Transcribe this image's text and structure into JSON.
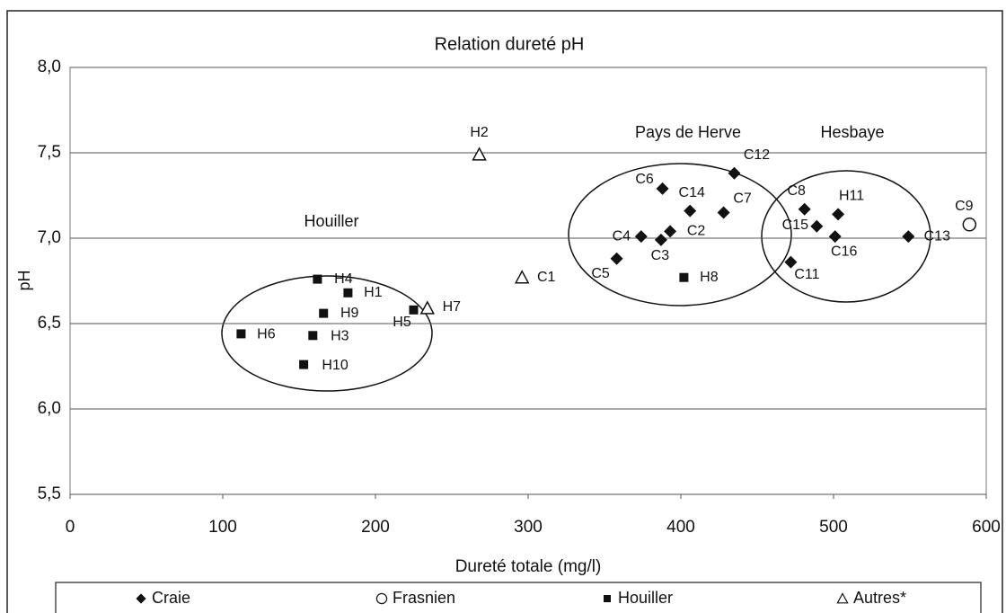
{
  "chart_data": {
    "type": "scatter",
    "title": "Relation dureté pH",
    "x_label": "Dureté totale (mg/l)",
    "y_label": "pH",
    "xlim": [
      0,
      600
    ],
    "ylim": [
      5.5,
      8
    ],
    "xticks": [
      0,
      100,
      200,
      300,
      400,
      500,
      600
    ],
    "yticks": [
      {
        "value": 5.5,
        "label": "5,5"
      },
      {
        "value": 6,
        "label": "6,0"
      },
      {
        "value": 6.5,
        "label": "6,5"
      },
      {
        "value": 7,
        "label": "7,0"
      },
      {
        "value": 7.5,
        "label": "7,5"
      },
      {
        "value": 8,
        "label": "8,0"
      }
    ],
    "grid": true,
    "legend": "bottom",
    "annotations": [
      "Houiller",
      "Pays de Herve",
      "Hesbaye"
    ],
    "series": [
      {
        "name": "Craie",
        "marker": "diamond",
        "color": "#111111",
        "labels": [
          "C12",
          "C6",
          "C14",
          "C7",
          "C2",
          "C4",
          "C3",
          "C5",
          "C8",
          "C15",
          "H11",
          "C16",
          "C13",
          "C11"
        ],
        "x": [
          435,
          388,
          406,
          428,
          393,
          374,
          387,
          358,
          481,
          489,
          503,
          501,
          549,
          472
        ],
        "values": [
          7.38,
          7.29,
          7.16,
          7.15,
          7.04,
          7.01,
          6.99,
          6.88,
          7.17,
          7.07,
          7.14,
          7.01,
          7.01,
          6.86
        ]
      },
      {
        "name": "Frasnien",
        "marker": "circle",
        "color": "#111111",
        "labels": [
          "C9"
        ],
        "x": [
          589
        ],
        "values": [
          7.08
        ]
      },
      {
        "name": "Houiller",
        "marker": "square",
        "color": "#111111",
        "labels": [
          "H4",
          "H1",
          "H9",
          "H5",
          "H6",
          "H3",
          "H10",
          "H8"
        ],
        "x": [
          162,
          182,
          166,
          225,
          112,
          159,
          153,
          402
        ],
        "values": [
          6.76,
          6.68,
          6.56,
          6.58,
          6.44,
          6.43,
          6.26,
          6.77
        ]
      },
      {
        "name": "Autres*",
        "marker": "triangle",
        "color": "#111111",
        "labels": [
          "H2",
          "C1",
          "H7"
        ],
        "x": [
          268,
          296,
          234
        ],
        "values": [
          7.49,
          6.77,
          6.59
        ]
      }
    ]
  }
}
